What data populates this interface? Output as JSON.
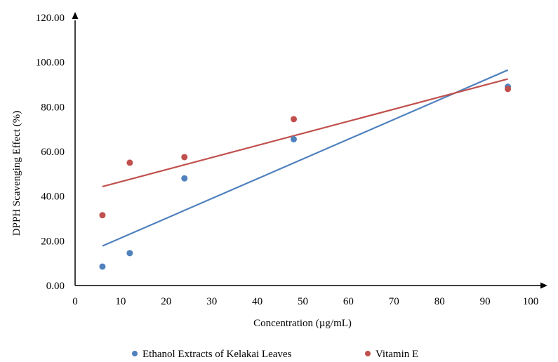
{
  "chart_data": {
    "type": "scatter",
    "xlabel": "Concentration  (µg/mL)",
    "ylabel": "DPPH Scavenging  Effect  (%)",
    "xlim": [
      0,
      100
    ],
    "ylim": [
      0,
      120
    ],
    "x_ticks": [
      "0",
      "10",
      "20",
      "30",
      "40",
      "50",
      "60",
      "70",
      "80",
      "90",
      "100"
    ],
    "x_tick_values": [
      0,
      10,
      20,
      30,
      40,
      50,
      60,
      70,
      80,
      90,
      100
    ],
    "y_ticks": [
      "0.00",
      "20.00",
      "40.00",
      "60.00",
      "80.00",
      "100.00",
      "120.00"
    ],
    "y_tick_values": [
      0,
      20,
      40,
      60,
      80,
      100,
      120
    ],
    "grid": false,
    "legend_position": "bottom",
    "series": [
      {
        "name": "Ethanol Extracts of Kelakai Leaves",
        "color": "#4f81bd",
        "x": [
          6,
          12,
          24,
          48,
          95
        ],
        "y": [
          8.5,
          14.5,
          48,
          65.5,
          89
        ],
        "trendline": {
          "x": [
            6,
            95
          ],
          "y": [
            17.7,
            96.5
          ]
        }
      },
      {
        "name": "Vitamin E",
        "color": "#c0504d",
        "x": [
          6,
          12,
          24,
          48,
          95
        ],
        "y": [
          31.5,
          55,
          57.5,
          74.5,
          88
        ],
        "trendline": {
          "x": [
            6,
            95
          ],
          "y": [
            44.3,
            92.5
          ]
        }
      }
    ]
  }
}
